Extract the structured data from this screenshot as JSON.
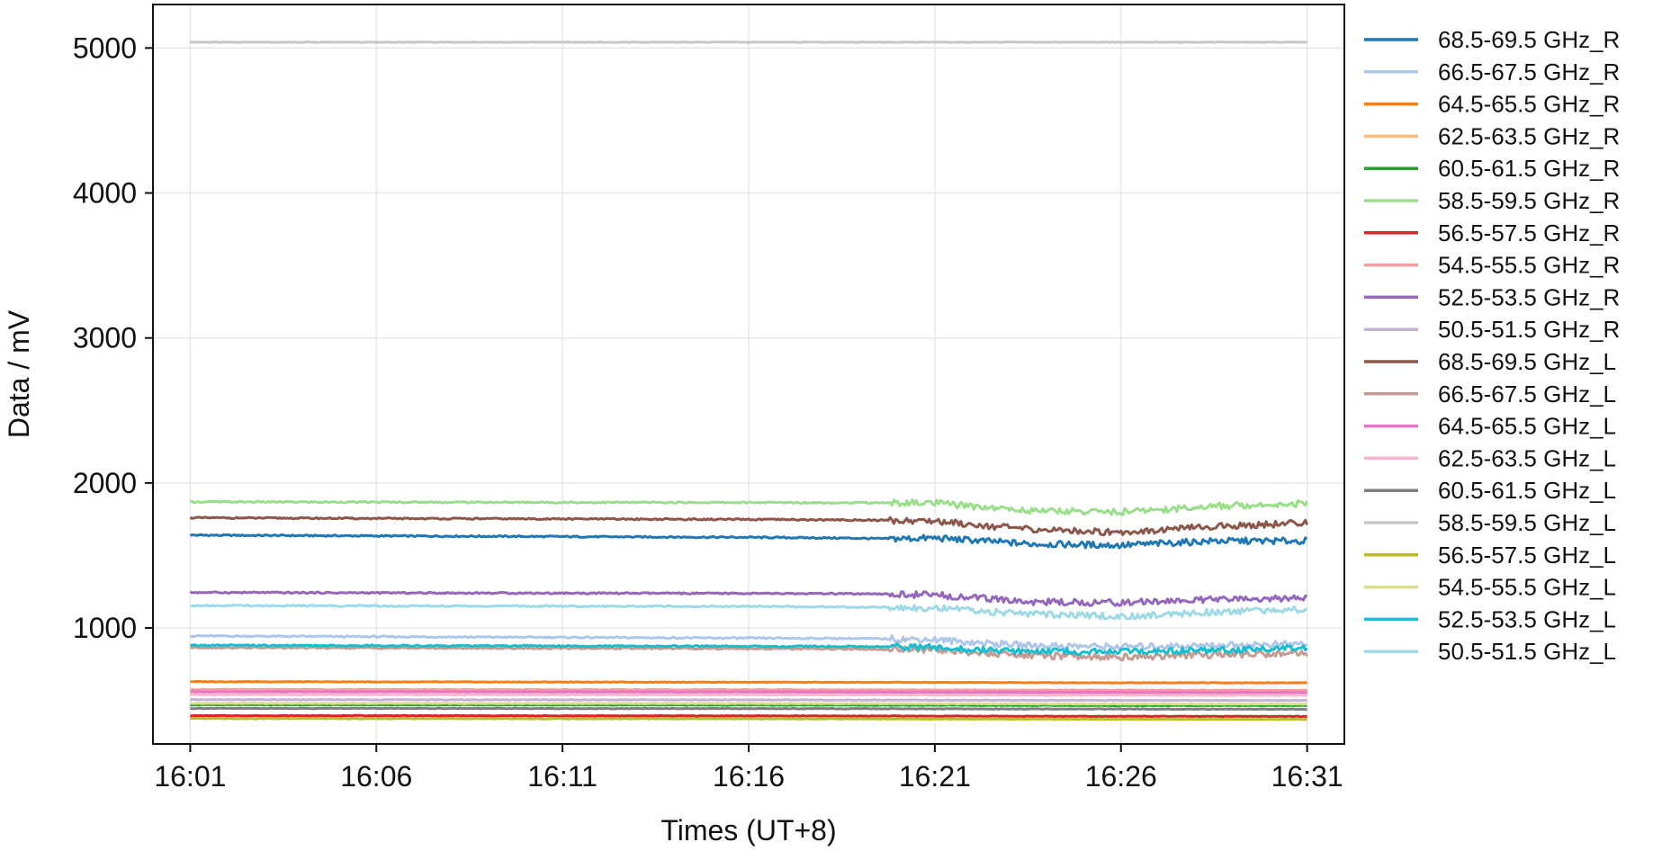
{
  "chart_data": {
    "type": "line",
    "xlabel": "Times (UT+8)",
    "ylabel": "Data / mV",
    "x_range": [
      "16:00",
      "16:32"
    ],
    "ylim": [
      200,
      5300
    ],
    "x_ticks": [
      "16:01",
      "16:06",
      "16:11",
      "16:16",
      "16:21",
      "16:26",
      "16:31"
    ],
    "y_ticks": [
      1000,
      2000,
      3000,
      4000,
      5000
    ],
    "grid": true,
    "legend_position": "outside-right",
    "x_start": "16:01",
    "x_end": "16:31",
    "series": [
      {
        "name": "68.5-69.5 GHz_R",
        "color": "#1f77b4",
        "values": [
          1640,
          1635,
          1630,
          1625,
          1620,
          1615,
          1620,
          1605,
          1580,
          1570,
          1600,
          1600
        ]
      },
      {
        "name": "66.5-67.5 GHz_R",
        "color": "#aec7e8",
        "values": [
          945,
          940,
          935,
          930,
          928,
          925,
          920,
          900,
          880,
          870,
          880,
          890
        ]
      },
      {
        "name": "64.5-65.5 GHz_R",
        "color": "#ff7f0e",
        "values": [
          630,
          628,
          627,
          626,
          625,
          625,
          624,
          624,
          623,
          622,
          622,
          622
        ]
      },
      {
        "name": "62.5-63.5 GHz_R",
        "color": "#ffbb78",
        "values": [
          560,
          560,
          558,
          557,
          556,
          555,
          555,
          554,
          553,
          552,
          552,
          552
        ]
      },
      {
        "name": "60.5-61.5 GHz_R",
        "color": "#2ca02c",
        "values": [
          470,
          470,
          469,
          468,
          468,
          467,
          467,
          466,
          466,
          465,
          465,
          465
        ]
      },
      {
        "name": "58.5-59.5 GHz_R",
        "color": "#98df8a",
        "values": [
          1870,
          1868,
          1866,
          1865,
          1864,
          1863,
          1862,
          1840,
          1810,
          1800,
          1840,
          1860
        ]
      },
      {
        "name": "56.5-57.5 GHz_R",
        "color": "#d62728",
        "values": [
          395,
          395,
          394,
          394,
          393,
          393,
          392,
          392,
          391,
          391,
          390,
          390
        ]
      },
      {
        "name": "54.5-55.5 GHz_R",
        "color": "#ff9896",
        "values": [
          575,
          575,
          574,
          574,
          573,
          573,
          572,
          572,
          571,
          571,
          570,
          570
        ]
      },
      {
        "name": "52.5-53.5 GHz_R",
        "color": "#9467bd",
        "values": [
          1245,
          1242,
          1240,
          1238,
          1236,
          1232,
          1228,
          1210,
          1180,
          1175,
          1195,
          1205
        ]
      },
      {
        "name": "50.5-51.5 GHz_R",
        "color": "#c5b0d5",
        "values": [
          505,
          505,
          504,
          504,
          503,
          503,
          502,
          502,
          501,
          501,
          500,
          500
        ]
      },
      {
        "name": "68.5-69.5 GHz_L",
        "color": "#8c564b",
        "values": [
          1760,
          1755,
          1752,
          1748,
          1745,
          1742,
          1738,
          1715,
          1680,
          1660,
          1700,
          1725
        ]
      },
      {
        "name": "66.5-67.5 GHz_L",
        "color": "#c49c94",
        "values": [
          865,
          862,
          860,
          858,
          855,
          852,
          848,
          830,
          810,
          800,
          815,
          825
        ]
      },
      {
        "name": "64.5-65.5 GHz_L",
        "color": "#e377c2",
        "values": [
          560,
          560,
          559,
          559,
          558,
          558,
          557,
          557,
          556,
          556,
          555,
          555
        ]
      },
      {
        "name": "62.5-63.5 GHz_L",
        "color": "#f7b6d2",
        "values": [
          540,
          540,
          539,
          539,
          538,
          538,
          537,
          537,
          536,
          536,
          535,
          535
        ]
      },
      {
        "name": "60.5-61.5 GHz_L",
        "color": "#7f7f7f",
        "values": [
          445,
          445,
          444,
          444,
          443,
          443,
          442,
          442,
          441,
          441,
          440,
          440
        ]
      },
      {
        "name": "58.5-59.5 GHz_L",
        "color": "#c7c7c7",
        "values": [
          5040,
          5040,
          5040,
          5040,
          5040,
          5040,
          5040,
          5040,
          5040,
          5040,
          5040,
          5040
        ]
      },
      {
        "name": "56.5-57.5 GHz_L",
        "color": "#bcbd22",
        "values": [
          375,
          375,
          374,
          374,
          373,
          373,
          372,
          372,
          371,
          371,
          370,
          370
        ]
      },
      {
        "name": "54.5-55.5 GHz_L",
        "color": "#dbdb8d",
        "values": [
          480,
          480,
          479,
          479,
          478,
          478,
          477,
          477,
          476,
          476,
          475,
          475
        ]
      },
      {
        "name": "52.5-53.5 GHz_L",
        "color": "#17becf",
        "values": [
          880,
          878,
          876,
          874,
          872,
          870,
          866,
          850,
          840,
          835,
          845,
          860
        ]
      },
      {
        "name": "50.5-51.5 GHz_L",
        "color": "#9edae5",
        "values": [
          1155,
          1152,
          1150,
          1148,
          1145,
          1142,
          1138,
          1120,
          1095,
          1080,
          1110,
          1130
        ]
      }
    ],
    "x_sample_times": [
      "16:01:00",
      "16:06:00",
      "16:11:00",
      "16:16:00",
      "16:18:30",
      "16:19:50",
      "16:21:00",
      "16:22:00",
      "16:23:30",
      "16:26:00",
      "16:28:30",
      "16:31:00"
    ]
  }
}
